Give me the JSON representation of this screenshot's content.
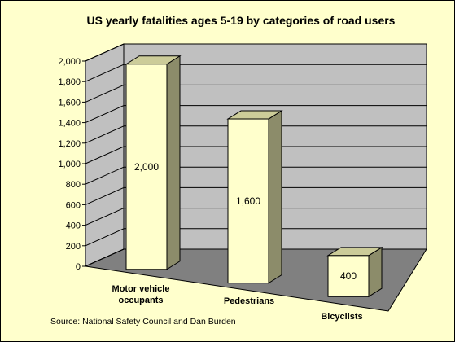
{
  "chart_data": {
    "type": "bar",
    "title": "US yearly fatalities ages 5-19 by categories of road users",
    "categories": [
      [
        "Motor vehicle",
        "occupants"
      ],
      [
        "Pedestrians"
      ],
      [
        "Bicyclists"
      ]
    ],
    "values": [
      2000,
      1600,
      400
    ],
    "data_labels": [
      "2,000",
      "1,600",
      "400"
    ],
    "ylim": [
      0,
      2000
    ],
    "yticks": [
      "0",
      "200",
      "400",
      "600",
      "800",
      "1,000",
      "1,200",
      "1,400",
      "1,600",
      "1,800",
      "2,000"
    ],
    "grid": true,
    "style": "3d-column",
    "colors": {
      "background": "#ffffcc",
      "wall": "#c0c0c0",
      "floor": "#808080",
      "bar_front": "#ffffcc",
      "bar_top": "#cccc99",
      "bar_side": "#8c8c6a"
    }
  },
  "source": "Source:  National Safety Council and Dan Burden"
}
